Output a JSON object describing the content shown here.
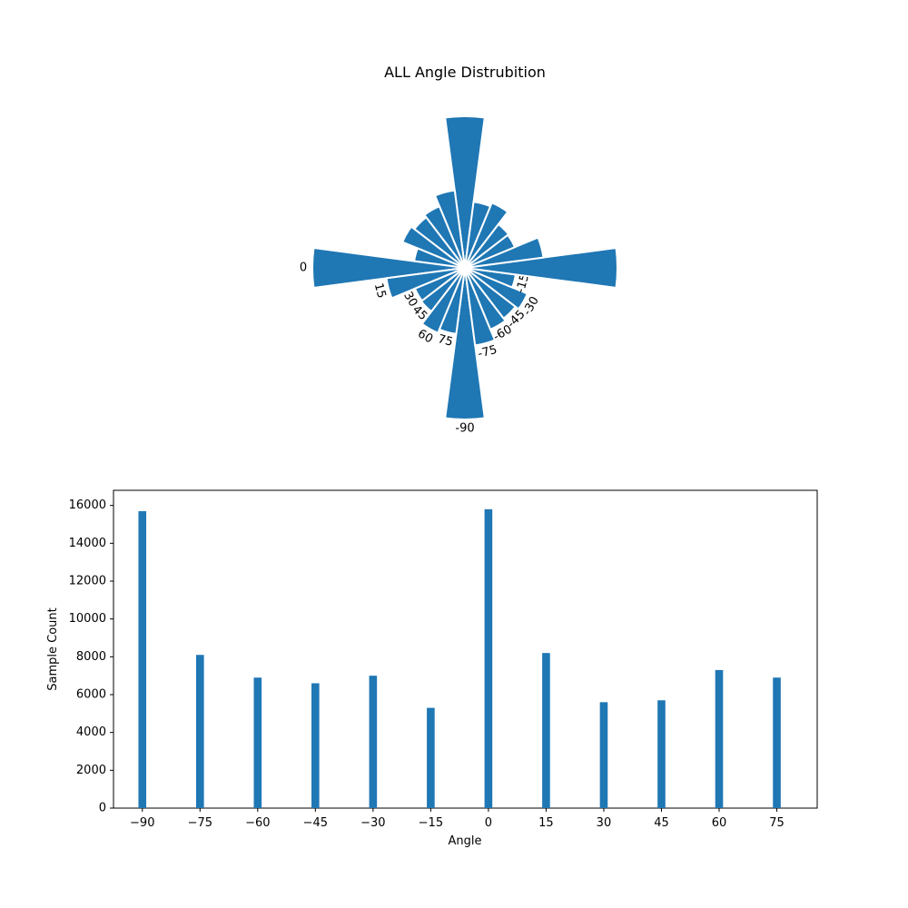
{
  "title": "ALL Angle Distrubition",
  "colors": {
    "bar": "#1f77b4",
    "edge": "#ffffff",
    "axis": "#000000"
  },
  "chart_data": [
    {
      "type": "polar_bar",
      "angles_deg": [
        -90,
        -75,
        -60,
        -45,
        -30,
        -15,
        0,
        15,
        30,
        45,
        60,
        75
      ],
      "values": [
        15700,
        8100,
        6900,
        6600,
        7000,
        5300,
        15800,
        8200,
        5600,
        5700,
        7300,
        6900
      ],
      "angle_labels": [
        "-90",
        "-75",
        "-60",
        "-45",
        "-30",
        "-15",
        "0",
        "15",
        "30",
        "45",
        "60",
        "75"
      ],
      "mirrored": true,
      "grid": false
    },
    {
      "type": "bar",
      "categories": [
        "−90",
        "−75",
        "−60",
        "−45",
        "−30",
        "−15",
        "0",
        "15",
        "30",
        "45",
        "60",
        "75"
      ],
      "x": [
        -90,
        -75,
        -60,
        -45,
        -30,
        -15,
        0,
        15,
        30,
        45,
        60,
        75
      ],
      "values": [
        15700,
        8100,
        6900,
        6600,
        7000,
        5300,
        15800,
        8200,
        5600,
        5700,
        7300,
        6900
      ],
      "xlabel": "Angle",
      "ylabel": "Sample Count",
      "xlim": [
        -97.5,
        85.5
      ],
      "ylim": [
        0,
        16000
      ],
      "yticks": [
        0,
        2000,
        4000,
        6000,
        8000,
        10000,
        12000,
        14000,
        16000
      ],
      "ytick_labels": [
        "0",
        "2000",
        "4000",
        "6000",
        "8000",
        "10000",
        "12000",
        "14000",
        "16000"
      ],
      "grid": false
    }
  ]
}
